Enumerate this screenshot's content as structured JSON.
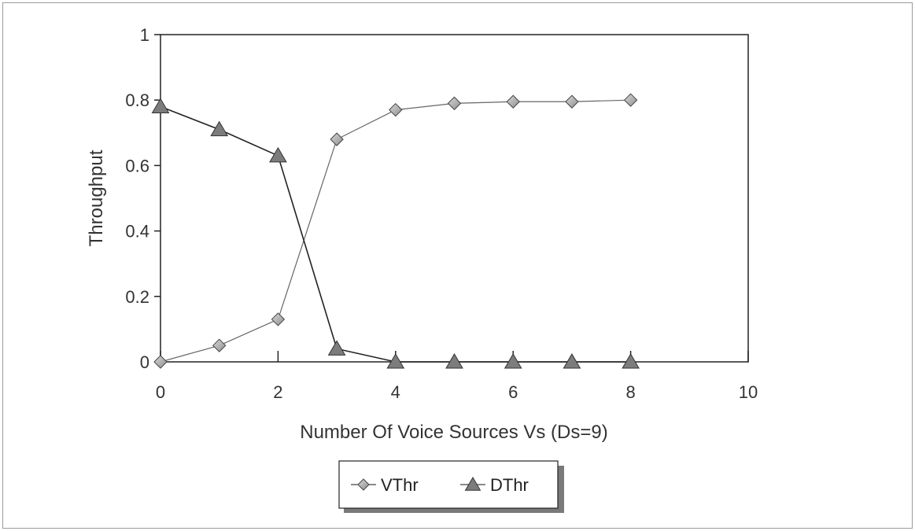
{
  "chart_data": {
    "type": "line",
    "title": "",
    "xlabel": "Number Of Voice Sources Vs (Ds=9)",
    "ylabel": "Throughput",
    "xlim": [
      0,
      10
    ],
    "ylim": [
      0,
      1
    ],
    "x_ticks": [
      "0",
      "2",
      "4",
      "6",
      "8",
      "10"
    ],
    "y_ticks": [
      "0",
      "0.2",
      "0.4",
      "0.6",
      "0.8",
      "1"
    ],
    "grid": false,
    "legend_position": "bottom",
    "series": [
      {
        "name": "VThr",
        "marker": "diamond",
        "color": "#b8b8b8",
        "x": [
          0,
          1,
          2,
          3,
          4,
          5,
          6,
          7,
          8
        ],
        "y": [
          0,
          0.05,
          0.13,
          0.68,
          0.77,
          0.79,
          0.795,
          0.795,
          0.8
        ]
      },
      {
        "name": "DThr",
        "marker": "triangle",
        "color": "#8a8a8a",
        "x": [
          0,
          1,
          2,
          3,
          4,
          5,
          6,
          7,
          8
        ],
        "y": [
          0.78,
          0.71,
          0.63,
          0.04,
          0,
          0,
          0,
          0,
          0
        ]
      }
    ]
  }
}
